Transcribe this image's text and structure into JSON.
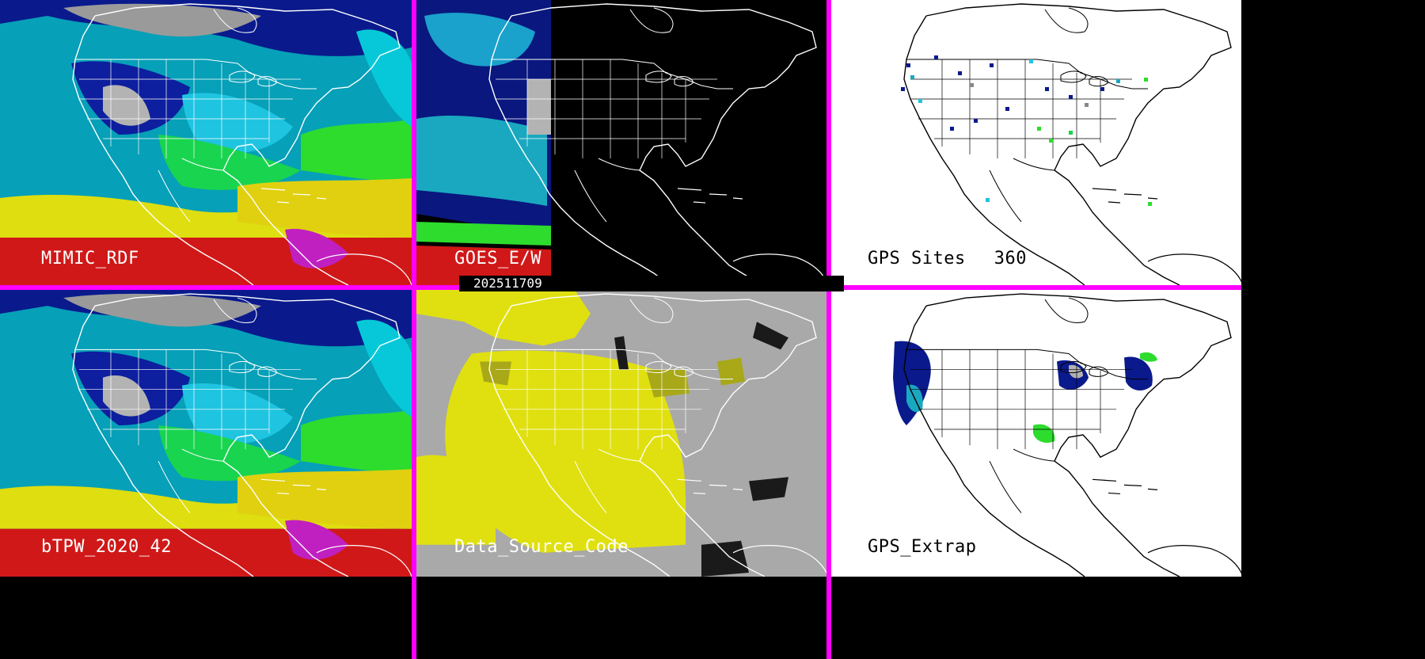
{
  "colors": {
    "divider": "#ff00ff",
    "outline": "#ffffff",
    "outline_dark": "#000000"
  },
  "panels": [
    {
      "id": "mimic-rdf",
      "label": "MIMIC_RDF",
      "background": "#06a0b8",
      "product": "total precipitable water"
    },
    {
      "id": "goes-ew",
      "label": "GOES_E/W",
      "background": "#000000",
      "product": "satellite tpw"
    },
    {
      "id": "gps-sites",
      "label": "GPS Sites",
      "count": "360",
      "background": "#ffffff",
      "product": "gps station markers"
    },
    {
      "id": "btpw",
      "label": "bTPW_2020_42",
      "background": "#06a0b8",
      "product": "blended tpw"
    },
    {
      "id": "data-source-code",
      "label": "Data_Source_Code",
      "background": "#a9a9a9",
      "product": "source code map"
    },
    {
      "id": "gps-extrap",
      "label": "GPS_Extrap",
      "background": "#ffffff",
      "product": "gps extrapolation"
    }
  ],
  "timestamp": "202511709"
}
